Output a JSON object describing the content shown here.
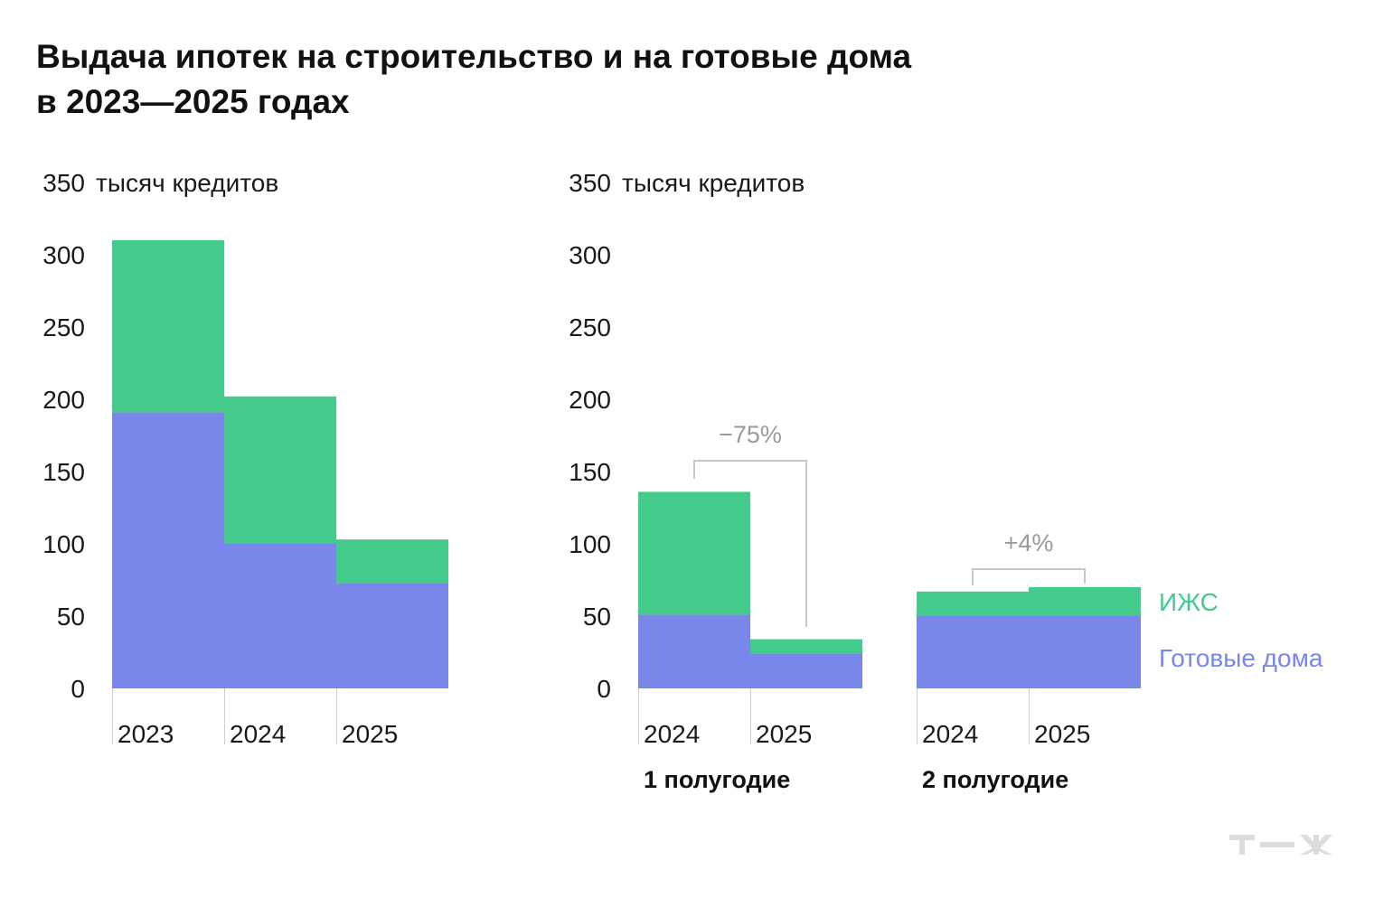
{
  "title_line1": "Выдача ипотек на строительство и на готовые дома",
  "title_line2": "в 2023—2025 годах",
  "colors": {
    "izhs": "#44cb8b",
    "ready": "#7986ea",
    "annotation": "#9a9a9a",
    "logo": "#dcdcdc"
  },
  "logo_text": "т—ж",
  "chart_data": [
    {
      "type": "bar",
      "stacked": true,
      "unit_label": "тысяч кредитов",
      "yticks": [
        0,
        50,
        100,
        150,
        200,
        250,
        300,
        350
      ],
      "ylim": [
        0,
        350
      ],
      "categories": [
        "2023",
        "2024",
        "2025"
      ],
      "series": [
        {
          "name": "Готовые дома",
          "key": "ready",
          "values": [
            191,
            100,
            73
          ]
        },
        {
          "name": "ИЖС",
          "key": "izhs",
          "values": [
            119,
            102,
            30
          ]
        }
      ]
    },
    {
      "type": "bar",
      "stacked": true,
      "unit_label": "тысяч кредитов",
      "yticks": [
        0,
        50,
        100,
        150,
        200,
        250,
        300,
        350
      ],
      "ylim": [
        0,
        350
      ],
      "groups": [
        {
          "label": "1 полугодие",
          "categories": [
            "2024",
            "2025"
          ],
          "annotation": "−75%",
          "ready": [
            51,
            24
          ],
          "izhs": [
            85,
            10
          ]
        },
        {
          "label": "2 полугодие",
          "categories": [
            "2024",
            "2025"
          ],
          "annotation": "+4%",
          "ready": [
            50,
            50
          ],
          "izhs": [
            17,
            20
          ]
        }
      ],
      "legend": [
        {
          "name": "ИЖС",
          "key": "izhs"
        },
        {
          "name": "Готовые дома",
          "key": "ready"
        }
      ]
    }
  ]
}
